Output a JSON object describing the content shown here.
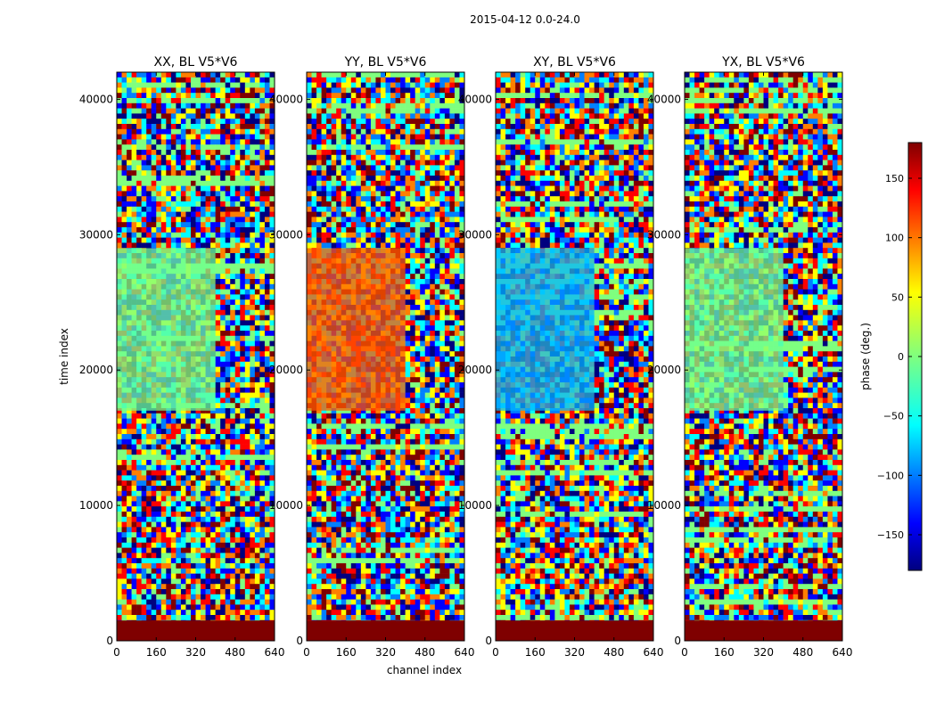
{
  "figure": {
    "suptitle": "2015-04-12 0.0-24.0",
    "ylabel": "time index",
    "xlabel": "channel index"
  },
  "chart_data": [
    {
      "type": "heatmap",
      "title": "XX, BL V5*V6",
      "xlim": [
        0,
        640
      ],
      "ylim": [
        0,
        42000
      ],
      "xticks": [
        0,
        160,
        320,
        480,
        640
      ],
      "yticks": [
        0,
        10000,
        20000,
        30000,
        40000
      ],
      "value_quantity": "phase (deg.)"
    },
    {
      "type": "heatmap",
      "title": "YY, BL V5*V6",
      "xlim": [
        0,
        640
      ],
      "ylim": [
        0,
        42000
      ],
      "xticks": [
        0,
        160,
        320,
        480,
        640
      ],
      "yticks": [
        0,
        10000,
        20000,
        30000,
        40000
      ],
      "value_quantity": "phase (deg.)"
    },
    {
      "type": "heatmap",
      "title": "XY, BL V5*V6",
      "xlim": [
        0,
        640
      ],
      "ylim": [
        0,
        42000
      ],
      "xticks": [
        0,
        160,
        320,
        480,
        640
      ],
      "yticks": [
        0,
        10000,
        20000,
        30000,
        40000
      ],
      "value_quantity": "phase (deg.)"
    },
    {
      "type": "heatmap",
      "title": "YX, BL V5*V6",
      "xlim": [
        0,
        640
      ],
      "ylim": [
        0,
        42000
      ],
      "xticks": [
        0,
        160,
        320,
        480,
        640
      ],
      "yticks": [
        0,
        10000,
        20000,
        30000,
        40000
      ],
      "value_quantity": "phase (deg.)"
    }
  ],
  "colorbar": {
    "label": "phase (deg.)",
    "range": [
      -180,
      180
    ],
    "ticks": [
      150,
      100,
      50,
      0,
      -50,
      -100,
      -150
    ],
    "tick_labels": [
      "150",
      "100",
      "50",
      "0",
      "−50",
      "−100",
      "−150"
    ],
    "colormap": "jet",
    "colors": [
      "#00007f",
      "#0000ff",
      "#007fff",
      "#00ffff",
      "#7fff7f",
      "#ffff00",
      "#ff7f00",
      "#ff0000",
      "#7f0000"
    ]
  }
}
